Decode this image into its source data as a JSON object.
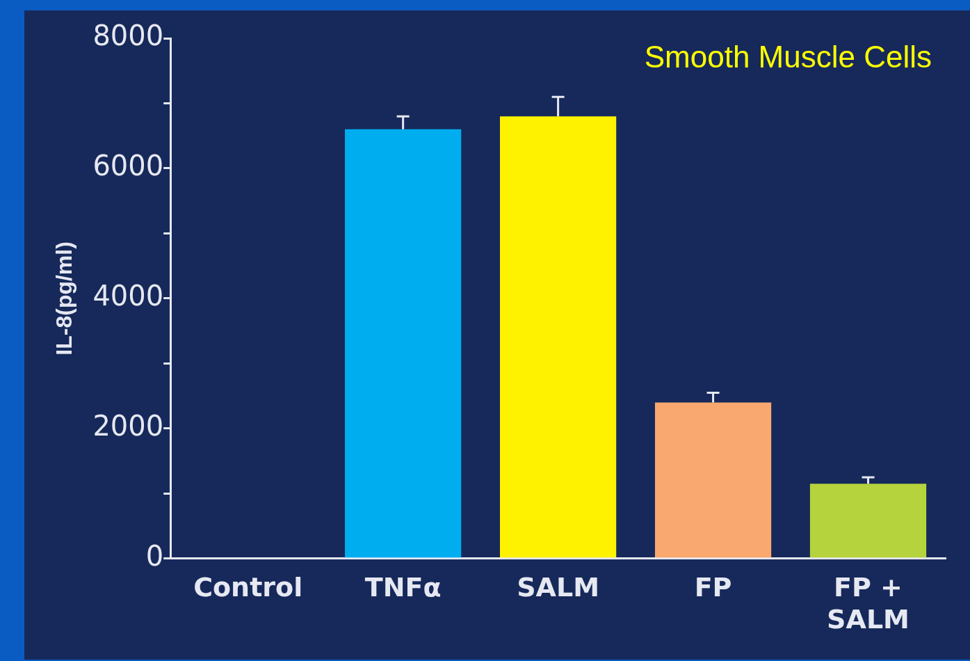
{
  "chart_data": {
    "type": "bar",
    "title": "Smooth Muscle Cells",
    "ylabel": "IL-8(pg/ml)",
    "categories": [
      "Control",
      "TNFα",
      "SALM",
      "FP",
      "FP + SALM"
    ],
    "values": [
      0,
      6600,
      6800,
      2400,
      1150
    ],
    "colors": [
      "#00aeef",
      "#00aeef",
      "#fff200",
      "#f9a870",
      "#b5d33d"
    ],
    "errors": [
      null,
      [
        6600,
        6800
      ],
      [
        6800,
        7100
      ],
      [
        2400,
        2550
      ],
      [
        1150,
        1250
      ]
    ],
    "ylim": [
      0,
      8000
    ],
    "yticks": [
      0,
      {
        "value": 1000,
        "label": null
      },
      2000,
      {
        "value": 3000,
        "label": null
      },
      4000,
      {
        "value": 5000,
        "label": null
      },
      6000,
      {
        "value": 7000,
        "label": null
      },
      8000
    ],
    "grid": false,
    "legend": false
  }
}
